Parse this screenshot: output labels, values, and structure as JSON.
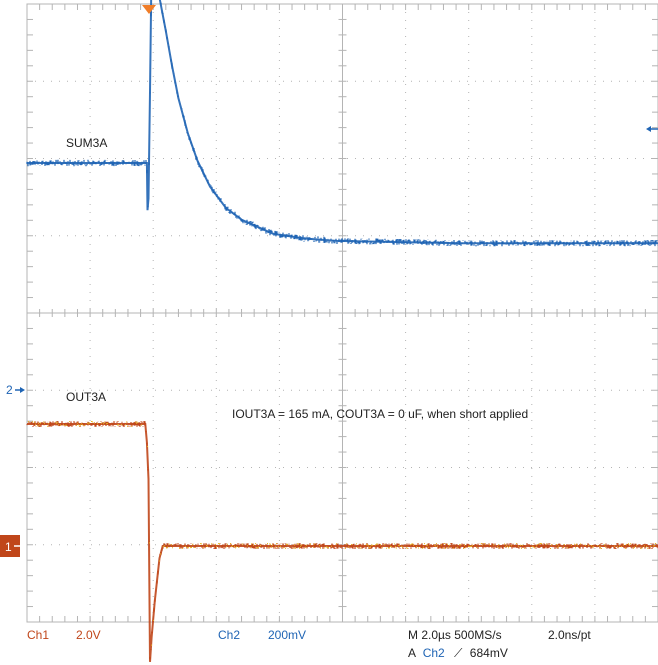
{
  "chart_data": {
    "type": "line",
    "title": "",
    "xlabel": "",
    "ylabel": "",
    "grid": true,
    "grid_divisions": {
      "x": 10,
      "y": 8
    },
    "x_unit": "µs",
    "xlim": [
      -3.8,
      16.2
    ],
    "series": [
      {
        "name": "SUM3A",
        "channel": "Ch2",
        "color": "#1f64b4",
        "x": [
          -3.8,
          0.0,
          0.02,
          0.05,
          0.1,
          0.15,
          0.25,
          0.4,
          0.6,
          0.8,
          1.0,
          1.3,
          1.6,
          2.0,
          2.5,
          3.0,
          4.0,
          5.0,
          6.0,
          8.0,
          10.0,
          12.0,
          14.0,
          16.2
        ],
        "values": [
          0.0,
          0.0,
          -0.4,
          -0.3,
          0.6,
          1.7,
          1.67,
          1.4,
          1.12,
          0.82,
          0.55,
          0.25,
          0.02,
          -0.2,
          -0.38,
          -0.48,
          -0.6,
          -0.64,
          -0.66,
          -0.67,
          -0.68,
          -0.68,
          -0.68,
          -0.68
        ]
      },
      {
        "name": "OUT3A",
        "channel": "Ch1",
        "color": "#c0461a",
        "x": [
          -3.8,
          -0.05,
          0.0,
          0.05,
          0.1,
          0.15,
          0.25,
          0.4,
          0.5,
          16.2
        ],
        "values": [
          1.0,
          1.0,
          0.85,
          0.55,
          -0.95,
          -0.75,
          -0.45,
          -0.1,
          0.0,
          0.0
        ]
      }
    ],
    "labels": {
      "sum": "SUM3A",
      "out": "OUT3A",
      "annotation": "IOUT3A = 165 mA, COUT3A = 0 uF, when short applied"
    },
    "markers": {
      "ch1": "1",
      "ch2": "2"
    },
    "status": {
      "ch1_name": "Ch1",
      "ch1_scale": "2.0V",
      "ch2_name": "Ch2",
      "ch2_scale": "200mV",
      "timebase": "M 2.0µs 500MS/s",
      "resolution": "2.0ns/pt",
      "trigger_prefix": "A",
      "trigger_channel": "Ch2",
      "trigger_slope": "⟋",
      "trigger_level": "684mV"
    },
    "colors": {
      "ch1": "#c0461a",
      "ch2": "#1f64b4",
      "ch1_highlight": "#e8b51c",
      "grid": "#b4b4b4",
      "trigger_marker": "#f07d28"
    }
  }
}
